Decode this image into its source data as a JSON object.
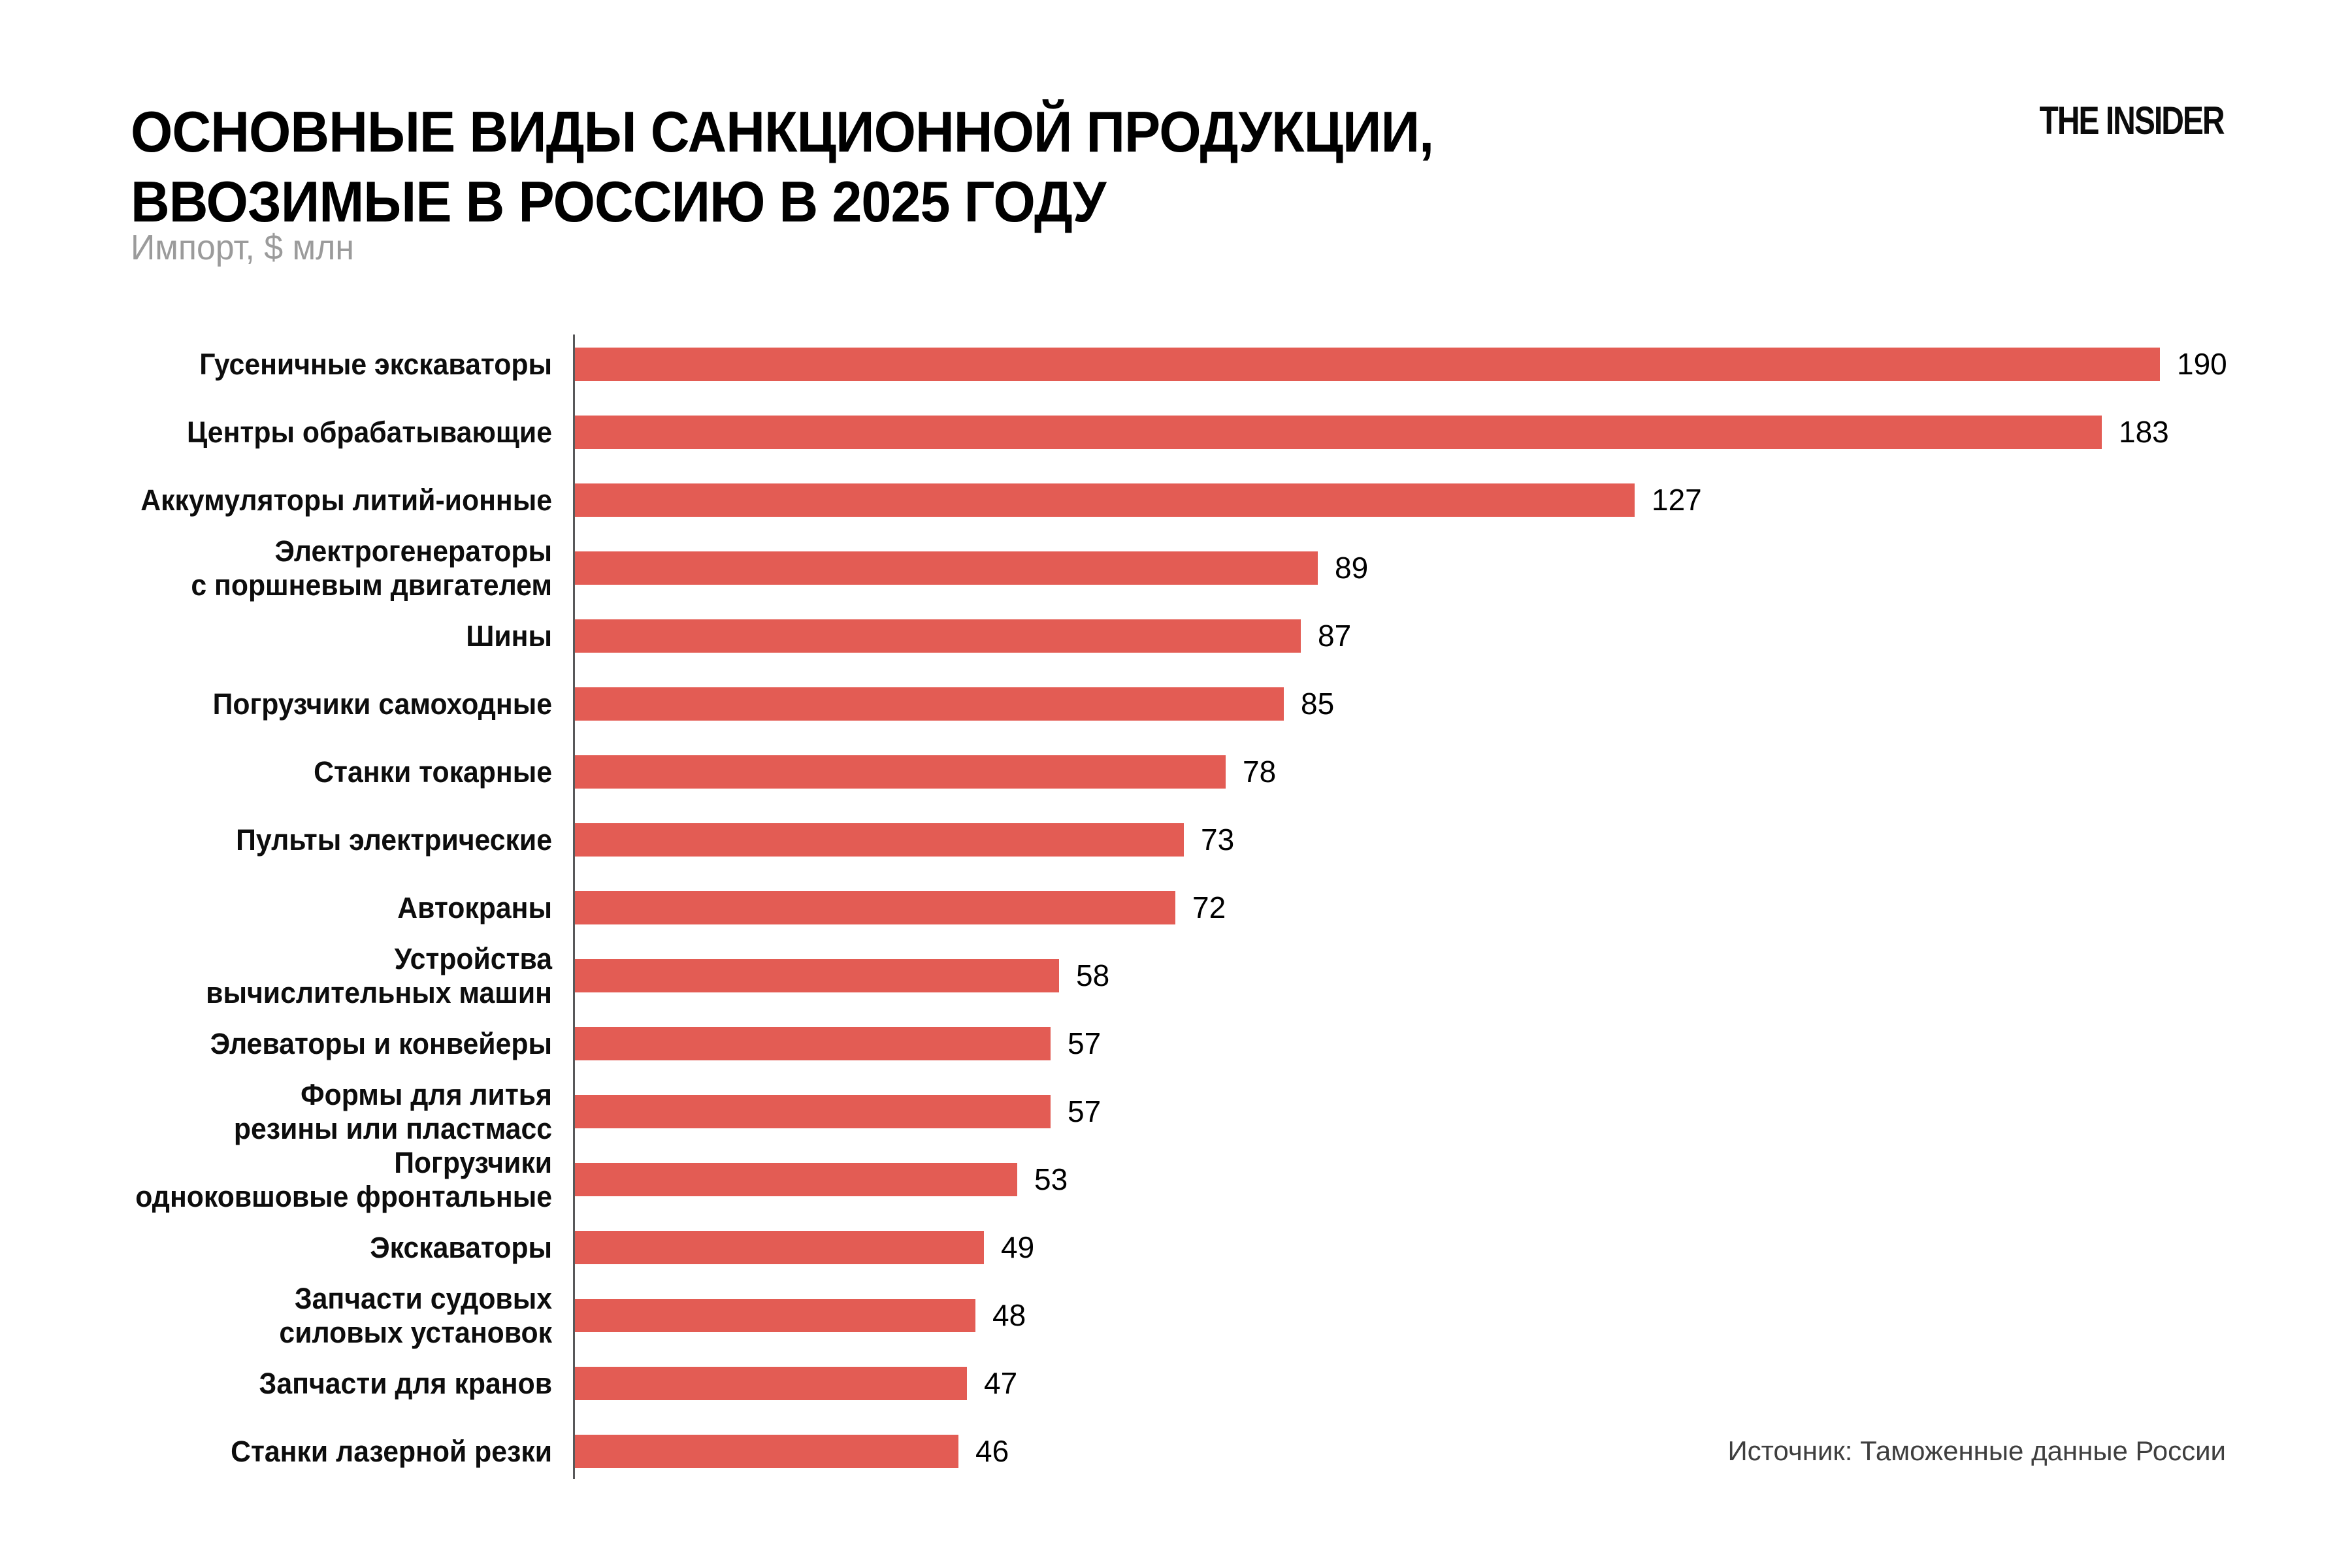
{
  "header": {
    "title_line1": "ОСНОВНЫЕ ВИДЫ САНКЦИОННОЙ ПРОДУКЦИИ,",
    "title_line2": "ВВОЗИМЫЕ В РОССИЮ В 2025 ГОДУ",
    "subtitle": "Импорт, $ млн",
    "logo": "THE INSIDER"
  },
  "footer": {
    "source": "Источник: Таможенные данные России"
  },
  "colors": {
    "bar": "#E35C54",
    "axis": "#58585A",
    "title": "#000000",
    "subtitle": "#9B9B9B",
    "value_label": "#000000",
    "category_label": "#0D0D0D",
    "source": "#3F3F3F",
    "background": "#FFFFFF"
  },
  "chart_data": {
    "type": "bar",
    "orientation": "horizontal",
    "title": "ОСНОВНЫЕ ВИДЫ САНКЦИОННОЙ ПРОДУКЦИИ, ВВОЗИМЫЕ В РОССИЮ В 2025 ГОДУ",
    "subtitle": "Импорт, $ млн",
    "xlabel": "",
    "ylabel": "",
    "xlim": [
      0,
      200
    ],
    "grid": false,
    "value_labels_shown": true,
    "items": [
      {
        "lines": [
          "Гусеничные экскаваторы"
        ],
        "value": 190
      },
      {
        "lines": [
          "Центры обрабатывающие"
        ],
        "value": 183
      },
      {
        "lines": [
          "Аккумуляторы литий-ионные"
        ],
        "value": 127
      },
      {
        "lines": [
          "Электрогенераторы",
          "с поршневым двигателем"
        ],
        "value": 89
      },
      {
        "lines": [
          "Шины"
        ],
        "value": 87
      },
      {
        "lines": [
          "Погрузчики самоходные"
        ],
        "value": 85
      },
      {
        "lines": [
          "Станки токарные"
        ],
        "value": 78
      },
      {
        "lines": [
          "Пульты электрические"
        ],
        "value": 73
      },
      {
        "lines": [
          "Автокраны"
        ],
        "value": 72
      },
      {
        "lines": [
          "Устройства",
          "вычислительных машин"
        ],
        "value": 58
      },
      {
        "lines": [
          "Элеваторы и конвейеры"
        ],
        "value": 57
      },
      {
        "lines": [
          "Формы для литья",
          "резины или пластмасс"
        ],
        "value": 57
      },
      {
        "lines": [
          "Погрузчики",
          "одноковшовые фронтальные"
        ],
        "value": 53
      },
      {
        "lines": [
          "Экскаваторы"
        ],
        "value": 49
      },
      {
        "lines": [
          "Запчасти судовых",
          "силовых установок"
        ],
        "value": 48
      },
      {
        "lines": [
          "Запчасти для кранов"
        ],
        "value": 47
      },
      {
        "lines": [
          "Станки лазерной резки"
        ],
        "value": 46
      }
    ]
  }
}
